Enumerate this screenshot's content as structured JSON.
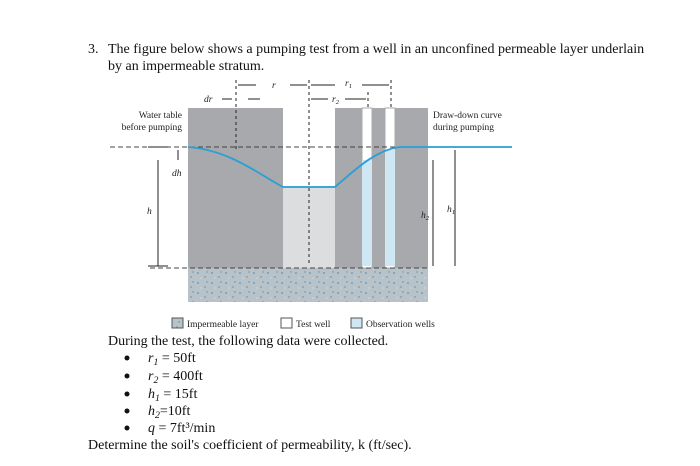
{
  "question": {
    "number": "3.",
    "lines": [
      "The figure below shows a pumping test from a well in an unconfined permeable layer underlain",
      "by an impermeable stratum."
    ]
  },
  "figure": {
    "dr": "dr",
    "r": "r",
    "r1": {
      "symbol": "r",
      "sub": "1"
    },
    "r2": {
      "symbol": "r",
      "sub": "2"
    },
    "water_table": [
      "Water table",
      "before pumping"
    ],
    "drawdown": [
      "Draw-down curve",
      "during pumping"
    ],
    "dh": "dh",
    "h": "h",
    "h2": {
      "symbol": "h",
      "sub": "2"
    },
    "h1": {
      "symbol": "h",
      "sub": "1"
    },
    "legend": [
      "Impermeable layer",
      "Test well",
      "Observation wells"
    ]
  },
  "intro": "During the test, the following data were collected.",
  "items": [
    {
      "symbol": "r",
      "sub": "1",
      "text": " = 50ft"
    },
    {
      "symbol": "r",
      "sub": "2",
      "text": " = 400ft"
    },
    {
      "symbol": "h",
      "sub": "1",
      "text": " = 15ft"
    },
    {
      "symbol": "h",
      "sub": "2",
      "text": "=10ft"
    },
    {
      "symbol": "q",
      "text": " = 7ft³/min"
    }
  ],
  "question_end": "Determine the soil's coefficient of permeability, k (ft/sec)."
}
